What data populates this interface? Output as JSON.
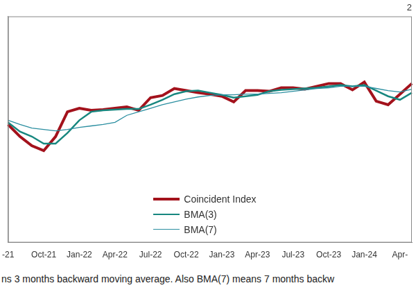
{
  "chart_data": {
    "type": "line",
    "title": "2",
    "footnote": "ns 3 months backward moving average. Also BMA(7) means 7 months backw",
    "categories": [
      "-21",
      null,
      null,
      "Oct-21",
      null,
      null,
      "Jan-22",
      null,
      null,
      "Apr-22",
      null,
      null,
      "Jul-22",
      null,
      null,
      "Oct-22",
      null,
      null,
      "Jan-23",
      null,
      null,
      "Apr-23",
      null,
      null,
      "Jul-23",
      null,
      null,
      "Oct-23",
      null,
      null,
      "Jan-24",
      null,
      null,
      "Apr-",
      null
    ],
    "series": [
      {
        "name": "Coincident Index",
        "color": "#a3121c",
        "values": [
          167,
          150,
          137,
          130,
          150,
          185,
          190,
          187,
          188,
          190,
          192,
          187,
          205,
          208,
          218,
          215,
          212,
          210,
          207,
          199,
          215,
          215,
          214,
          219,
          219,
          217,
          221,
          225,
          225,
          216,
          227,
          200,
          195,
          210,
          225
        ]
      },
      {
        "name": "BMA(3)",
        "color": "#17877f",
        "values": [
          170,
          157,
          150,
          140,
          140,
          155,
          173,
          185,
          187,
          188,
          189,
          189,
          195,
          202,
          210,
          214,
          215,
          212,
          209,
          205,
          207,
          209,
          214,
          216,
          217,
          218,
          219,
          221,
          223,
          221,
          223,
          215,
          207,
          202,
          212
        ]
      },
      {
        "name": "BMA(7)",
        "color": "#2a8ea0",
        "values": [
          173,
          167,
          162,
          160,
          158,
          160,
          163,
          165,
          167,
          170,
          180,
          185,
          190,
          195,
          199,
          203,
          206,
          208,
          209,
          209,
          210,
          210,
          211,
          212,
          214,
          216,
          218,
          219,
          221,
          221,
          221,
          218,
          215,
          213,
          217
        ]
      }
    ],
    "ylim": [
      0,
      320
    ],
    "tick_labels": "x",
    "grid": false,
    "legend": "bottom"
  }
}
